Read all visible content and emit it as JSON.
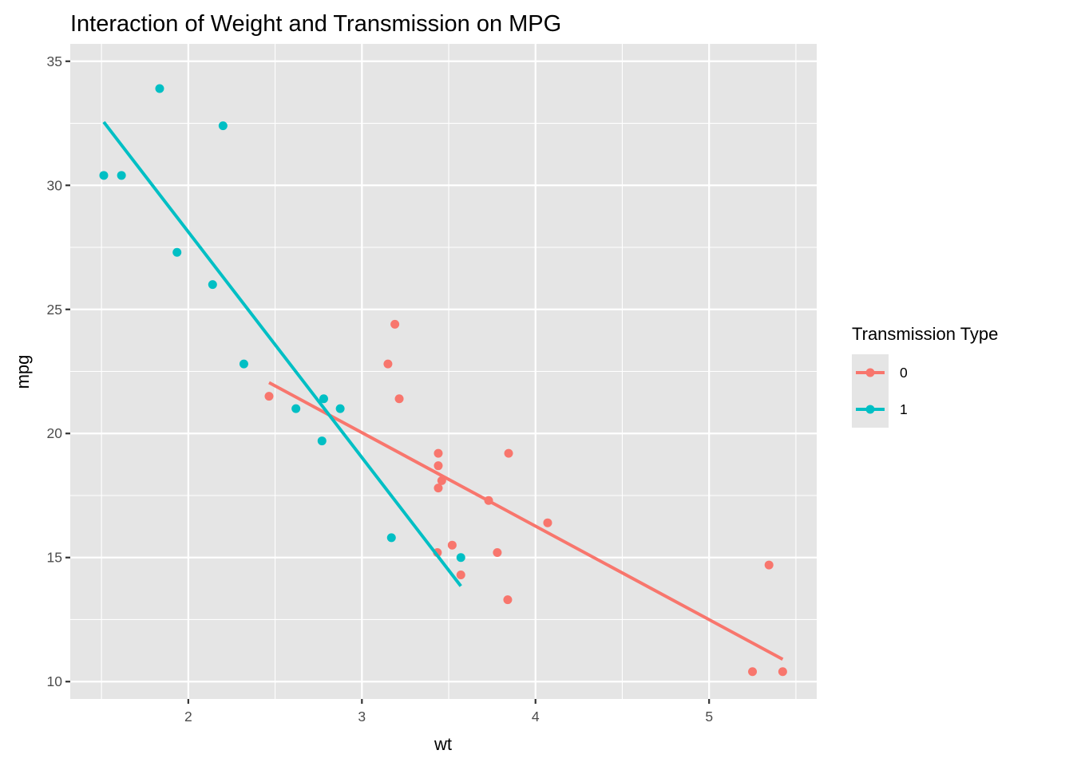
{
  "chart_data": {
    "type": "scatter",
    "title": "Interaction of Weight and Transmission on MPG",
    "xlabel": "wt",
    "ylabel": "mpg",
    "xlim": [
      1.32,
      5.62
    ],
    "ylim": [
      9.3,
      35.7
    ],
    "xticks": [
      2,
      3,
      4,
      5
    ],
    "yticks": [
      10,
      15,
      20,
      25,
      30,
      35
    ],
    "grid": true,
    "legend": {
      "title": "Transmission Type",
      "position": "right"
    },
    "series": [
      {
        "name": "0",
        "color": "#F8766D",
        "points": [
          [
            3.215,
            21.4
          ],
          [
            3.44,
            18.7
          ],
          [
            3.46,
            18.1
          ],
          [
            3.57,
            14.3
          ],
          [
            3.19,
            24.4
          ],
          [
            3.15,
            22.8
          ],
          [
            3.44,
            19.2
          ],
          [
            3.44,
            17.8
          ],
          [
            4.07,
            16.4
          ],
          [
            3.73,
            17.3
          ],
          [
            3.78,
            15.2
          ],
          [
            5.25,
            10.4
          ],
          [
            5.424,
            10.4
          ],
          [
            5.345,
            14.7
          ],
          [
            2.465,
            21.5
          ],
          [
            3.52,
            15.5
          ],
          [
            3.435,
            15.2
          ],
          [
            3.84,
            13.3
          ],
          [
            3.845,
            19.2
          ]
        ],
        "fit": [
          [
            2.465,
            22.05
          ],
          [
            5.424,
            10.9
          ]
        ]
      },
      {
        "name": "1",
        "color": "#00BFC4",
        "points": [
          [
            2.62,
            21.0
          ],
          [
            2.875,
            21.0
          ],
          [
            2.32,
            22.8
          ],
          [
            2.2,
            32.4
          ],
          [
            1.615,
            30.4
          ],
          [
            1.835,
            33.9
          ],
          [
            1.935,
            27.3
          ],
          [
            2.14,
            26.0
          ],
          [
            1.513,
            30.4
          ],
          [
            3.17,
            15.8
          ],
          [
            2.77,
            19.7
          ],
          [
            3.57,
            15.0
          ],
          [
            2.78,
            21.4
          ]
        ],
        "fit": [
          [
            1.513,
            32.55
          ],
          [
            3.57,
            13.85
          ]
        ]
      }
    ]
  }
}
